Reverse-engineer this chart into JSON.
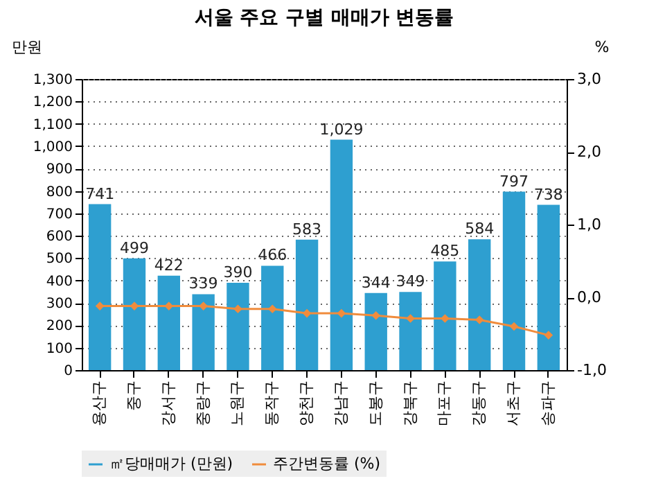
{
  "chart_data": {
    "type": "bar",
    "title": "서울 주요 구별 매매가 변동률",
    "ylabel": "만원",
    "y2label": "%",
    "categories": [
      "용산구",
      "중구",
      "강서구",
      "중랑구",
      "노원구",
      "동작구",
      "양천구",
      "강남구",
      "도봉구",
      "강북구",
      "마포구",
      "강동구",
      "서초구",
      "송파구"
    ],
    "series": [
      {
        "name": "㎡당매매가 (만원)",
        "color": "#2e9fd0",
        "values": [
          741,
          499,
          422,
          339,
          390,
          466,
          583,
          1029,
          344,
          349,
          485,
          584,
          797,
          738
        ],
        "value_labels": [
          "741",
          "499",
          "422",
          "339",
          "390",
          "466",
          "583",
          "1,029",
          "344",
          "349",
          "485",
          "584",
          "797",
          "738"
        ]
      },
      {
        "name": "주간변동률 (%)",
        "type": "line",
        "axis": "y2",
        "color": "#f08c3c",
        "marker": "diamond",
        "values": [
          -0.12,
          -0.12,
          -0.12,
          -0.12,
          -0.16,
          -0.16,
          -0.22,
          -0.22,
          -0.25,
          -0.29,
          -0.29,
          -0.31,
          -0.4,
          -0.52
        ]
      }
    ],
    "ylim": [
      0,
      1300
    ],
    "yticks": [
      {
        "value": 0,
        "label": "0"
      },
      {
        "value": 100,
        "label": "100"
      },
      {
        "value": 200,
        "label": "200"
      },
      {
        "value": 300,
        "label": "300"
      },
      {
        "value": 400,
        "label": "400"
      },
      {
        "value": 500,
        "label": "500"
      },
      {
        "value": 600,
        "label": "600"
      },
      {
        "value": 700,
        "label": "700"
      },
      {
        "value": 800,
        "label": "800"
      },
      {
        "value": 900,
        "label": "900"
      },
      {
        "value": 1000,
        "label": "1,000"
      },
      {
        "value": 1100,
        "label": "1,100"
      },
      {
        "value": 1200,
        "label": "1,200"
      },
      {
        "value": 1300,
        "label": "1,300"
      }
    ],
    "y2lim": [
      -1,
      3
    ],
    "y2ticks": [
      {
        "value": -1,
        "label": "-1,0"
      },
      {
        "value": 0,
        "label": "0,0"
      },
      {
        "value": 1,
        "label": "1,0"
      },
      {
        "value": 2,
        "label": "2,0"
      },
      {
        "value": 3,
        "label": "3,0"
      }
    ],
    "grid": "y",
    "legend": "bottom"
  }
}
